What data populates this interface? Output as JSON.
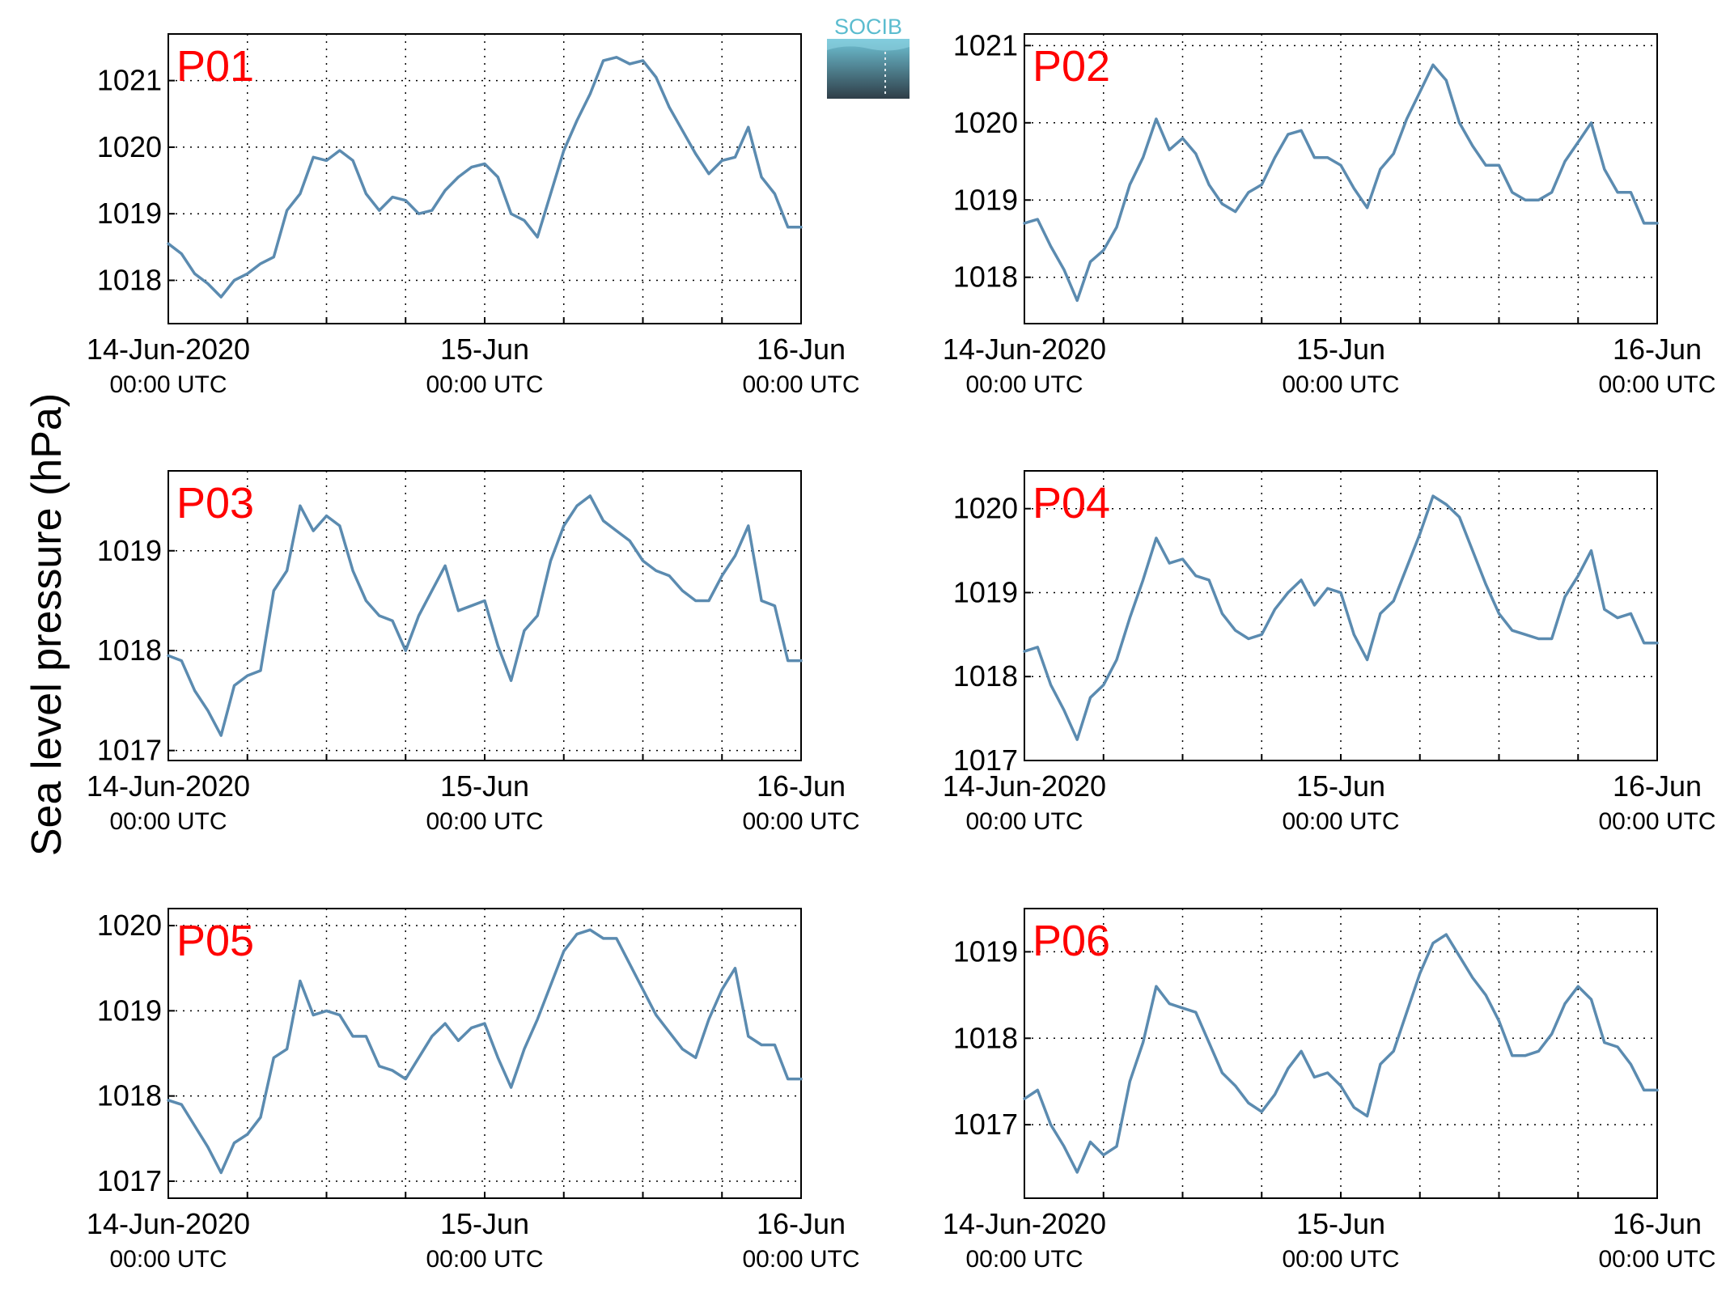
{
  "ylabel": "Sea level pressure (hPa)",
  "logo": {
    "text": "SOCIB",
    "colors": {
      "text": "#5bbccf",
      "top": "#6fc3d6",
      "bottom": "#2f3e48"
    }
  },
  "line_color": "#5b8bb0",
  "chart_data": [
    {
      "type": "line",
      "label": "P01",
      "ylim": [
        1017.35,
        1021.7
      ],
      "yticks": [
        1018,
        1019,
        1020,
        1021
      ],
      "xlim": [
        0,
        48
      ],
      "xticks": [
        0,
        24,
        48
      ],
      "xtick_labels": [
        "14-Jun-2020",
        "15-Jun",
        "16-Jun"
      ],
      "xtick_sublabels": [
        "00:00 UTC",
        "00:00 UTC",
        "00:00 UTC"
      ],
      "x": [
        0,
        1,
        2,
        3,
        4,
        5,
        6,
        7,
        8,
        9,
        10,
        11,
        12,
        13,
        14,
        15,
        16,
        17,
        18,
        19,
        20,
        21,
        22,
        23,
        24,
        25,
        26,
        27,
        28,
        29,
        30,
        31,
        32,
        33,
        34,
        35,
        36,
        37,
        38,
        39,
        40,
        41,
        42,
        43,
        44,
        45,
        46,
        47,
        48
      ],
      "y": [
        1018.55,
        1018.4,
        1018.1,
        1017.95,
        1017.75,
        1018.0,
        1018.1,
        1018.25,
        1018.35,
        1019.05,
        1019.3,
        1019.85,
        1019.8,
        1019.95,
        1019.8,
        1019.3,
        1019.05,
        1019.25,
        1019.2,
        1019.0,
        1019.05,
        1019.35,
        1019.55,
        1019.7,
        1019.75,
        1019.55,
        1019.0,
        1018.9,
        1018.65,
        1019.3,
        1019.95,
        1020.4,
        1020.8,
        1021.3,
        1021.35,
        1021.25,
        1021.3,
        1021.05,
        1020.6,
        1020.25,
        1019.9,
        1019.6,
        1019.8,
        1019.85,
        1020.3,
        1019.55,
        1019.3,
        1018.8,
        1018.8
      ]
    },
    {
      "type": "line",
      "label": "P02",
      "ylim": [
        1017.4,
        1021.15
      ],
      "yticks": [
        1018,
        1019,
        1020,
        1021
      ],
      "xlim": [
        0,
        48
      ],
      "xticks": [
        0,
        24,
        48
      ],
      "xtick_labels": [
        "14-Jun-2020",
        "15-Jun",
        "16-Jun"
      ],
      "xtick_sublabels": [
        "00:00 UTC",
        "00:00 UTC",
        "00:00 UTC"
      ],
      "x": [
        0,
        1,
        2,
        3,
        4,
        5,
        6,
        7,
        8,
        9,
        10,
        11,
        12,
        13,
        14,
        15,
        16,
        17,
        18,
        19,
        20,
        21,
        22,
        23,
        24,
        25,
        26,
        27,
        28,
        29,
        30,
        31,
        32,
        33,
        34,
        35,
        36,
        37,
        38,
        39,
        40,
        41,
        42,
        43,
        44,
        45,
        46,
        47,
        48
      ],
      "y": [
        1018.7,
        1018.75,
        1018.4,
        1018.1,
        1017.7,
        1018.2,
        1018.35,
        1018.65,
        1019.2,
        1019.55,
        1020.05,
        1019.65,
        1019.8,
        1019.6,
        1019.2,
        1018.95,
        1018.85,
        1019.1,
        1019.2,
        1019.55,
        1019.85,
        1019.9,
        1019.55,
        1019.55,
        1019.45,
        1019.15,
        1018.9,
        1019.4,
        1019.6,
        1020.05,
        1020.4,
        1020.75,
        1020.55,
        1020.0,
        1019.7,
        1019.45,
        1019.45,
        1019.1,
        1019.0,
        1019.0,
        1019.1,
        1019.5,
        1019.75,
        1020.0,
        1019.4,
        1019.1,
        1019.1,
        1018.7,
        1018.7
      ]
    },
    {
      "type": "line",
      "label": "P03",
      "ylim": [
        1016.9,
        1019.8
      ],
      "yticks": [
        1017,
        1018,
        1019
      ],
      "xlim": [
        0,
        48
      ],
      "xticks": [
        0,
        24,
        48
      ],
      "xtick_labels": [
        "14-Jun-2020",
        "15-Jun",
        "16-Jun"
      ],
      "xtick_sublabels": [
        "00:00 UTC",
        "00:00 UTC",
        "00:00 UTC"
      ],
      "x": [
        0,
        1,
        2,
        3,
        4,
        5,
        6,
        7,
        8,
        9,
        10,
        11,
        12,
        13,
        14,
        15,
        16,
        17,
        18,
        19,
        20,
        21,
        22,
        23,
        24,
        25,
        26,
        27,
        28,
        29,
        30,
        31,
        32,
        33,
        34,
        35,
        36,
        37,
        38,
        39,
        40,
        41,
        42,
        43,
        44,
        45,
        46,
        47,
        48
      ],
      "y": [
        1017.95,
        1017.9,
        1017.6,
        1017.4,
        1017.15,
        1017.65,
        1017.75,
        1017.8,
        1018.6,
        1018.8,
        1019.45,
        1019.2,
        1019.35,
        1019.25,
        1018.8,
        1018.5,
        1018.35,
        1018.3,
        1018.0,
        1018.35,
        1018.6,
        1018.85,
        1018.4,
        1018.45,
        1018.5,
        1018.05,
        1017.7,
        1018.2,
        1018.35,
        1018.9,
        1019.25,
        1019.45,
        1019.55,
        1019.3,
        1019.2,
        1019.1,
        1018.9,
        1018.8,
        1018.75,
        1018.6,
        1018.5,
        1018.5,
        1018.75,
        1018.95,
        1019.25,
        1018.5,
        1018.45,
        1017.9,
        1017.9
      ]
    },
    {
      "type": "line",
      "label": "P04",
      "ylim": [
        1017.0,
        1020.45
      ],
      "yticks": [
        1017,
        1018,
        1019,
        1020
      ],
      "xlim": [
        0,
        48
      ],
      "xticks": [
        0,
        24,
        48
      ],
      "xtick_labels": [
        "14-Jun-2020",
        "15-Jun",
        "16-Jun"
      ],
      "xtick_sublabels": [
        "00:00 UTC",
        "00:00 UTC",
        "00:00 UTC"
      ],
      "x": [
        0,
        1,
        2,
        3,
        4,
        5,
        6,
        7,
        8,
        9,
        10,
        11,
        12,
        13,
        14,
        15,
        16,
        17,
        18,
        19,
        20,
        21,
        22,
        23,
        24,
        25,
        26,
        27,
        28,
        29,
        30,
        31,
        32,
        33,
        34,
        35,
        36,
        37,
        38,
        39,
        40,
        41,
        42,
        43,
        44,
        45,
        46,
        47,
        48
      ],
      "y": [
        1018.3,
        1018.35,
        1017.9,
        1017.6,
        1017.25,
        1017.75,
        1017.9,
        1018.2,
        1018.7,
        1019.15,
        1019.65,
        1019.35,
        1019.4,
        1019.2,
        1019.15,
        1018.75,
        1018.55,
        1018.45,
        1018.5,
        1018.8,
        1019.0,
        1019.15,
        1018.85,
        1019.05,
        1019.0,
        1018.5,
        1018.2,
        1018.75,
        1018.9,
        1019.3,
        1019.7,
        1020.15,
        1020.05,
        1019.9,
        1019.5,
        1019.1,
        1018.75,
        1018.55,
        1018.5,
        1018.45,
        1018.45,
        1018.95,
        1019.2,
        1019.5,
        1018.8,
        1018.7,
        1018.75,
        1018.4,
        1018.4
      ]
    },
    {
      "type": "line",
      "label": "P05",
      "ylim": [
        1016.8,
        1020.2
      ],
      "yticks": [
        1017,
        1018,
        1019,
        1020
      ],
      "xlim": [
        0,
        48
      ],
      "xticks": [
        0,
        24,
        48
      ],
      "xtick_labels": [
        "14-Jun-2020",
        "15-Jun",
        "16-Jun"
      ],
      "xtick_sublabels": [
        "00:00 UTC",
        "00:00 UTC",
        "00:00 UTC"
      ],
      "x": [
        0,
        1,
        2,
        3,
        4,
        5,
        6,
        7,
        8,
        9,
        10,
        11,
        12,
        13,
        14,
        15,
        16,
        17,
        18,
        19,
        20,
        21,
        22,
        23,
        24,
        25,
        26,
        27,
        28,
        29,
        30,
        31,
        32,
        33,
        34,
        35,
        36,
        37,
        38,
        39,
        40,
        41,
        42,
        43,
        44,
        45,
        46,
        47,
        48
      ],
      "y": [
        1017.95,
        1017.9,
        1017.65,
        1017.4,
        1017.1,
        1017.45,
        1017.55,
        1017.75,
        1018.45,
        1018.55,
        1019.35,
        1018.95,
        1019.0,
        1018.95,
        1018.7,
        1018.7,
        1018.35,
        1018.3,
        1018.2,
        1018.45,
        1018.7,
        1018.85,
        1018.65,
        1018.8,
        1018.85,
        1018.45,
        1018.1,
        1018.55,
        1018.9,
        1019.3,
        1019.7,
        1019.9,
        1019.95,
        1019.85,
        1019.85,
        1019.55,
        1019.25,
        1018.95,
        1018.75,
        1018.55,
        1018.45,
        1018.9,
        1019.25,
        1019.5,
        1018.7,
        1018.6,
        1018.6,
        1018.2,
        1018.2
      ]
    },
    {
      "type": "line",
      "label": "P06",
      "ylim": [
        1016.15,
        1019.5
      ],
      "yticks": [
        1017,
        1018,
        1019
      ],
      "xlim": [
        0,
        48
      ],
      "xticks": [
        0,
        24,
        48
      ],
      "xtick_labels": [
        "14-Jun-2020",
        "15-Jun",
        "16-Jun"
      ],
      "xtick_sublabels": [
        "00:00 UTC",
        "00:00 UTC",
        "00:00 UTC"
      ],
      "x": [
        0,
        1,
        2,
        3,
        4,
        5,
        6,
        7,
        8,
        9,
        10,
        11,
        12,
        13,
        14,
        15,
        16,
        17,
        18,
        19,
        20,
        21,
        22,
        23,
        24,
        25,
        26,
        27,
        28,
        29,
        30,
        31,
        32,
        33,
        34,
        35,
        36,
        37,
        38,
        39,
        40,
        41,
        42,
        43,
        44,
        45,
        46,
        47,
        48
      ],
      "y": [
        1017.3,
        1017.4,
        1017.0,
        1016.75,
        1016.45,
        1016.8,
        1016.65,
        1016.75,
        1017.5,
        1017.95,
        1018.6,
        1018.4,
        1018.35,
        1018.3,
        1017.95,
        1017.6,
        1017.45,
        1017.25,
        1017.15,
        1017.35,
        1017.65,
        1017.85,
        1017.55,
        1017.6,
        1017.45,
        1017.2,
        1017.1,
        1017.7,
        1017.85,
        1018.3,
        1018.75,
        1019.1,
        1019.2,
        1018.95,
        1018.7,
        1018.5,
        1018.2,
        1017.8,
        1017.8,
        1017.85,
        1018.05,
        1018.4,
        1018.6,
        1018.45,
        1017.95,
        1017.9,
        1017.7,
        1017.4,
        1017.4
      ]
    }
  ]
}
